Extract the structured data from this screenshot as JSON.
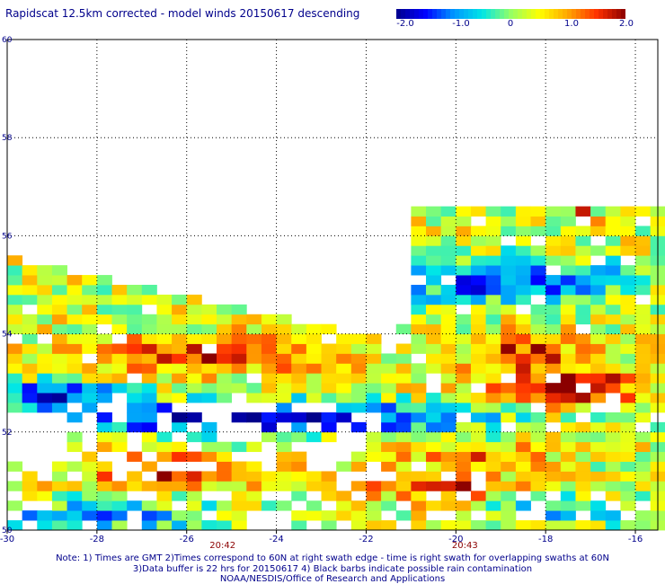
{
  "title": "Rapidscat 12.5km corrected - model winds 20150617 descending",
  "colorbar": {
    "ticks": [
      "-2.0",
      "-1.0",
      "0",
      "1.0",
      "2.0"
    ],
    "tick_values": [
      -2.0,
      -1.0,
      0,
      1.0,
      2.0
    ],
    "range": [
      -2.0,
      2.0
    ],
    "colors": [
      "#00008b",
      "#0000ff",
      "#0096ff",
      "#00e6e6",
      "#96ff64",
      "#ffff00",
      "#ffa500",
      "#ff3200",
      "#8b0000"
    ]
  },
  "map": {
    "x_ticks": [
      "-30",
      "-28",
      "-26",
      "-24",
      "-22",
      "-20",
      "-18",
      "-16"
    ],
    "x_tick_values": [
      -30,
      -28,
      -26,
      -24,
      -22,
      -20,
      -18,
      -16
    ],
    "y_ticks": [
      "60",
      "58",
      "56",
      "54",
      "52",
      "50"
    ],
    "y_tick_values": [
      60,
      58,
      56,
      54,
      52,
      50
    ],
    "lon_range": [
      -30,
      -15.5
    ],
    "lat_range": [
      50,
      60
    ],
    "time_labels": [
      {
        "text": "20:42",
        "lon": -25.2
      },
      {
        "text": "20:43",
        "lon": -19.8
      }
    ],
    "grid": "dotted",
    "tick_color": "#00008b",
    "time_color": "#8b0000"
  },
  "notes": [
    "Note: 1) Times are GMT 2)Times correspond to 60N at right swath edge - time is right swath for overlapping swaths at 60N",
    "3)Data buffer is 22 hrs for 20150617 4) Black barbs indicate possible rain contamination",
    "NOAA/NESDIS/Office of Research and Applications"
  ]
}
